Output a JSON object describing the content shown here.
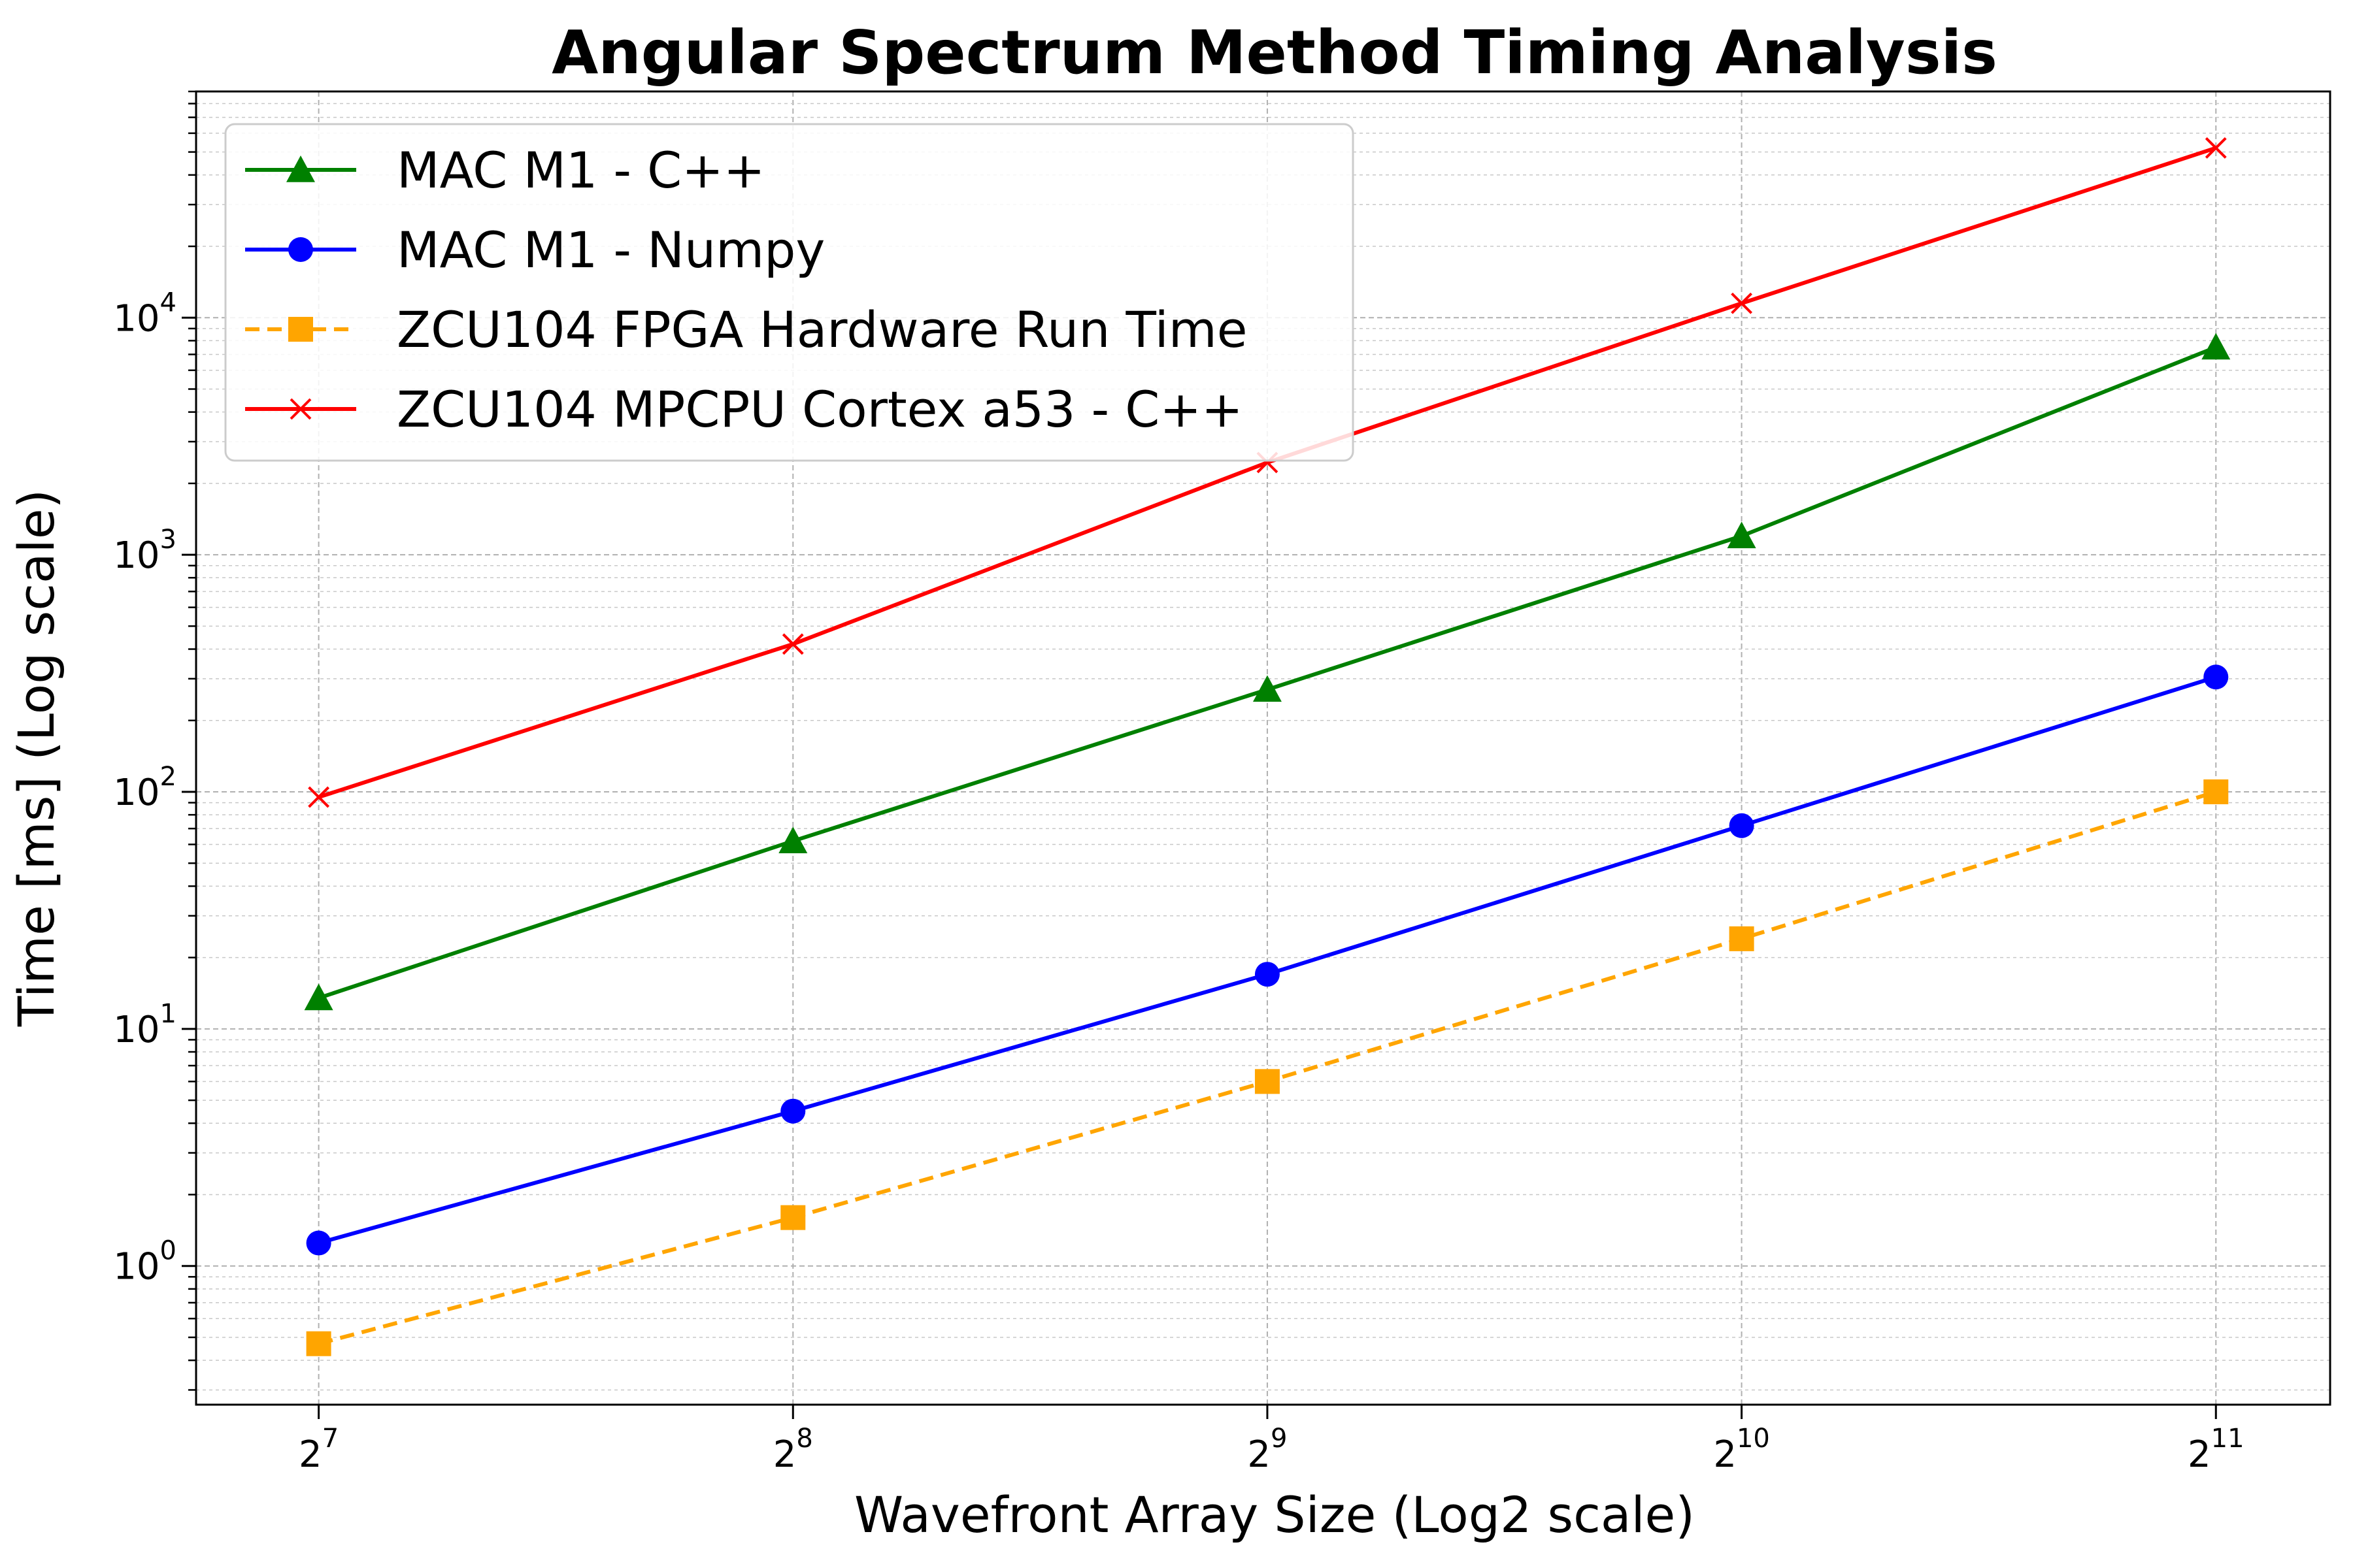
{
  "chart_data": {
    "type": "line",
    "title": "Angular Spectrum Method Timing Analysis",
    "xlabel": "Wavefront Array Size (Log2 scale)",
    "ylabel": "Time [ms] (Log scale)",
    "x": [
      128,
      256,
      512,
      1024,
      2048
    ],
    "x_scale": "log2",
    "y_scale": "log10",
    "xlim": [
      107,
      2420
    ],
    "ylim": [
      0.26,
      90000
    ],
    "x_ticks": [
      {
        "base": "2",
        "exp": "7"
      },
      {
        "base": "2",
        "exp": "8"
      },
      {
        "base": "2",
        "exp": "9"
      },
      {
        "base": "2",
        "exp": "10"
      },
      {
        "base": "2",
        "exp": "11"
      }
    ],
    "y_ticks": [
      {
        "base": "10",
        "exp": "0",
        "value": 1
      },
      {
        "base": "10",
        "exp": "1",
        "value": 10
      },
      {
        "base": "10",
        "exp": "2",
        "value": 100
      },
      {
        "base": "10",
        "exp": "3",
        "value": 1000
      },
      {
        "base": "10",
        "exp": "4",
        "value": 10000
      }
    ],
    "grid": true,
    "legend_position": "top-left",
    "series": [
      {
        "name": "MAC M1 - C++",
        "color": "#008000",
        "marker": "triangle",
        "dash": "solid",
        "values": [
          13.5,
          62,
          270,
          1200,
          7500
        ]
      },
      {
        "name": "MAC M1 - Numpy",
        "color": "#0000ff",
        "marker": "circle",
        "dash": "solid",
        "values": [
          1.25,
          4.5,
          17,
          72,
          305
        ]
      },
      {
        "name": "ZCU104 FPGA Hardware Run Time",
        "color": "#ffa500",
        "marker": "square",
        "dash": "dashed",
        "values": [
          0.47,
          1.6,
          6.0,
          24,
          100
        ]
      },
      {
        "name": "ZCU104 MPCPU Cortex a53 - C++",
        "color": "#ff0000",
        "marker": "x",
        "dash": "solid",
        "values": [
          95,
          420,
          2450,
          11500,
          52000
        ]
      }
    ]
  }
}
